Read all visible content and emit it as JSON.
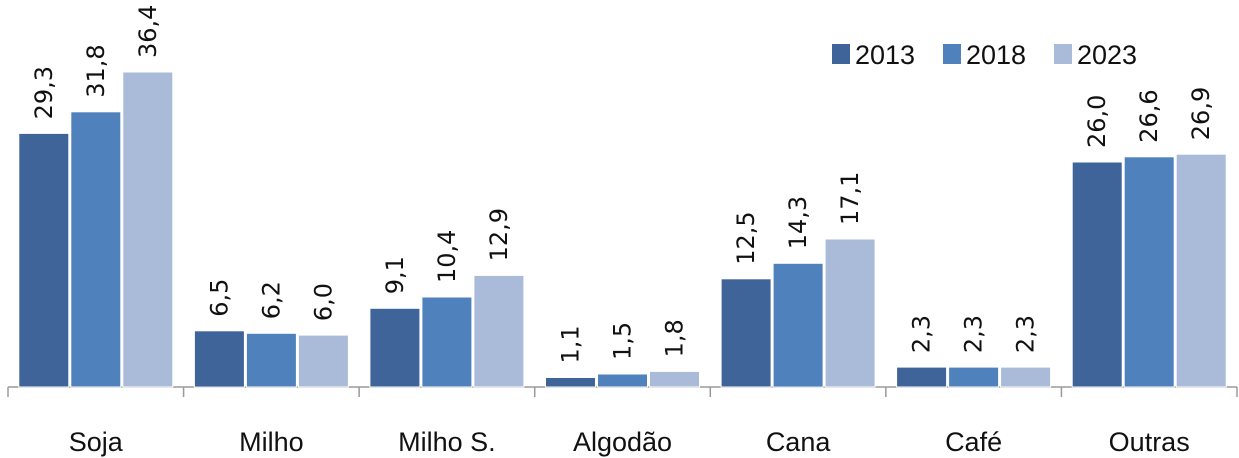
{
  "chart_data": {
    "type": "bar",
    "categories": [
      "Soja",
      "Milho",
      "Milho S.",
      "Algodão",
      "Cana",
      "Café",
      "Outras"
    ],
    "series": [
      {
        "name": "2013",
        "values": [
          29.3,
          6.5,
          9.1,
          1.1,
          12.5,
          2.3,
          26.0
        ],
        "labels": [
          "29,3",
          "6,5",
          "9,1",
          "1,1",
          "12,5",
          "2,3",
          "26,0"
        ]
      },
      {
        "name": "2018",
        "values": [
          31.8,
          6.2,
          10.4,
          1.5,
          14.3,
          2.3,
          26.6
        ],
        "labels": [
          "31,8",
          "6,2",
          "10,4",
          "1,5",
          "14,3",
          "2,3",
          "26,6"
        ]
      },
      {
        "name": "2023",
        "values": [
          36.4,
          6.0,
          12.9,
          1.8,
          17.1,
          2.3,
          26.9
        ],
        "labels": [
          "36,4",
          "6,0",
          "12,9",
          "1,8",
          "17,1",
          "2,3",
          "26,9"
        ]
      }
    ],
    "colors": [
      "#3e6499",
      "#4f81bd",
      "#a9bbd9"
    ],
    "ylim": [
      0,
      36.4
    ],
    "grid": false,
    "legend_position": "top-right"
  }
}
